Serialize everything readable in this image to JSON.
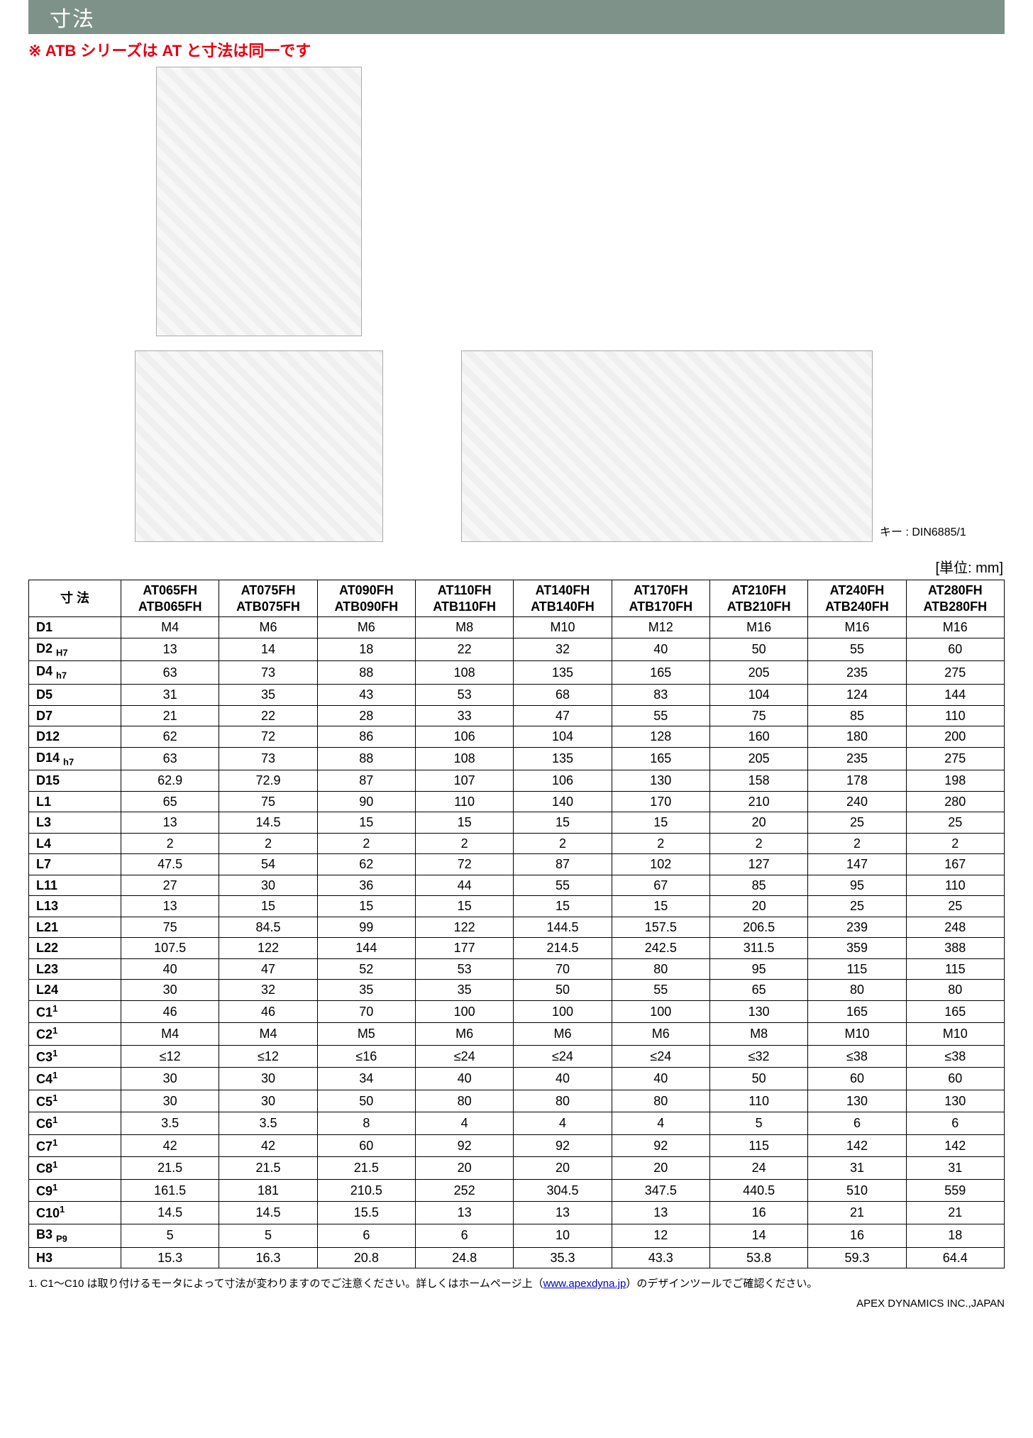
{
  "title": "寸法",
  "red_note": "※ ATB シリーズは AT と寸法は同一です",
  "unit_label": "[単位: mm]",
  "header_row_label": "寸 法",
  "key_label": "キー : DIN6885/1",
  "columns": [
    {
      "top": "AT065FH",
      "sub": "ATB065FH"
    },
    {
      "top": "AT075FH",
      "sub": "ATB075FH"
    },
    {
      "top": "AT090FH",
      "sub": "ATB090FH"
    },
    {
      "top": "AT110FH",
      "sub": "ATB110FH"
    },
    {
      "top": "AT140FH",
      "sub": "ATB140FH"
    },
    {
      "top": "AT170FH",
      "sub": "ATB170FH"
    },
    {
      "top": "AT210FH",
      "sub": "ATB210FH"
    },
    {
      "top": "AT240FH",
      "sub": "ATB240FH"
    },
    {
      "top": "AT280FH",
      "sub": "ATB280FH"
    }
  ],
  "rows": [
    {
      "label": "D1",
      "values": [
        "M4",
        "M6",
        "M6",
        "M8",
        "M10",
        "M12",
        "M16",
        "M16",
        "M16"
      ]
    },
    {
      "label": "D2",
      "label_sub": "H7",
      "values": [
        "13",
        "14",
        "18",
        "22",
        "32",
        "40",
        "50",
        "55",
        "60"
      ]
    },
    {
      "label": "D4",
      "label_sub": "h7",
      "values": [
        "63",
        "73",
        "88",
        "108",
        "135",
        "165",
        "205",
        "235",
        "275"
      ]
    },
    {
      "label": "D5",
      "values": [
        "31",
        "35",
        "43",
        "53",
        "68",
        "83",
        "104",
        "124",
        "144"
      ]
    },
    {
      "label": "D7",
      "values": [
        "21",
        "22",
        "28",
        "33",
        "47",
        "55",
        "75",
        "85",
        "110"
      ]
    },
    {
      "label": "D12",
      "values": [
        "62",
        "72",
        "86",
        "106",
        "104",
        "128",
        "160",
        "180",
        "200"
      ]
    },
    {
      "label": "D14",
      "label_sub": "h7",
      "values": [
        "63",
        "73",
        "88",
        "108",
        "135",
        "165",
        "205",
        "235",
        "275"
      ]
    },
    {
      "label": "D15",
      "values": [
        "62.9",
        "72.9",
        "87",
        "107",
        "106",
        "130",
        "158",
        "178",
        "198"
      ]
    },
    {
      "label": "L1",
      "values": [
        "65",
        "75",
        "90",
        "110",
        "140",
        "170",
        "210",
        "240",
        "280"
      ]
    },
    {
      "label": "L3",
      "values": [
        "13",
        "14.5",
        "15",
        "15",
        "15",
        "15",
        "20",
        "25",
        "25"
      ]
    },
    {
      "label": "L4",
      "values": [
        "2",
        "2",
        "2",
        "2",
        "2",
        "2",
        "2",
        "2",
        "2"
      ]
    },
    {
      "label": "L7",
      "values": [
        "47.5",
        "54",
        "62",
        "72",
        "87",
        "102",
        "127",
        "147",
        "167"
      ]
    },
    {
      "label": "L11",
      "values": [
        "27",
        "30",
        "36",
        "44",
        "55",
        "67",
        "85",
        "95",
        "110"
      ]
    },
    {
      "label": "L13",
      "values": [
        "13",
        "15",
        "15",
        "15",
        "15",
        "15",
        "20",
        "25",
        "25"
      ]
    },
    {
      "label": "L21",
      "values": [
        "75",
        "84.5",
        "99",
        "122",
        "144.5",
        "157.5",
        "206.5",
        "239",
        "248"
      ]
    },
    {
      "label": "L22",
      "values": [
        "107.5",
        "122",
        "144",
        "177",
        "214.5",
        "242.5",
        "311.5",
        "359",
        "388"
      ]
    },
    {
      "label": "L23",
      "values": [
        "40",
        "47",
        "52",
        "53",
        "70",
        "80",
        "95",
        "115",
        "115"
      ]
    },
    {
      "label": "L24",
      "values": [
        "30",
        "32",
        "35",
        "35",
        "50",
        "55",
        "65",
        "80",
        "80"
      ]
    },
    {
      "label": "C1",
      "label_sup": "1",
      "values": [
        "46",
        "46",
        "70",
        "100",
        "100",
        "100",
        "130",
        "165",
        "165"
      ]
    },
    {
      "label": "C2",
      "label_sup": "1",
      "values": [
        "M4",
        "M4",
        "M5",
        "M6",
        "M6",
        "M6",
        "M8",
        "M10",
        "M10"
      ]
    },
    {
      "label": "C3",
      "label_sup": "1",
      "values": [
        "≤12",
        "≤12",
        "≤16",
        "≤24",
        "≤24",
        "≤24",
        "≤32",
        "≤38",
        "≤38"
      ]
    },
    {
      "label": "C4",
      "label_sup": "1",
      "values": [
        "30",
        "30",
        "34",
        "40",
        "40",
        "40",
        "50",
        "60",
        "60"
      ]
    },
    {
      "label": "C5",
      "label_sup": "1",
      "values": [
        "30",
        "30",
        "50",
        "80",
        "80",
        "80",
        "110",
        "130",
        "130"
      ]
    },
    {
      "label": "C6",
      "label_sup": "1",
      "values": [
        "3.5",
        "3.5",
        "8",
        "4",
        "4",
        "4",
        "5",
        "6",
        "6"
      ]
    },
    {
      "label": "C7",
      "label_sup": "1",
      "values": [
        "42",
        "42",
        "60",
        "92",
        "92",
        "92",
        "115",
        "142",
        "142"
      ]
    },
    {
      "label": "C8",
      "label_sup": "1",
      "values": [
        "21.5",
        "21.5",
        "21.5",
        "20",
        "20",
        "20",
        "24",
        "31",
        "31"
      ]
    },
    {
      "label": "C9",
      "label_sup": "1",
      "values": [
        "161.5",
        "181",
        "210.5",
        "252",
        "304.5",
        "347.5",
        "440.5",
        "510",
        "559"
      ]
    },
    {
      "label": "C10",
      "label_sup": "1",
      "values": [
        "14.5",
        "14.5",
        "15.5",
        "13",
        "13",
        "13",
        "16",
        "21",
        "21"
      ]
    },
    {
      "label": "B3",
      "label_sub": "P9",
      "values": [
        "5",
        "5",
        "6",
        "6",
        "10",
        "12",
        "14",
        "16",
        "18"
      ]
    },
    {
      "label": "H3",
      "values": [
        "15.3",
        "16.3",
        "20.8",
        "24.8",
        "35.3",
        "43.3",
        "53.8",
        "59.3",
        "64.4"
      ]
    }
  ],
  "footnote_pre": "1. C1～C10 は取り付けるモータによって寸法が変わりますのでご注意ください。詳しくはホームページ上（",
  "footnote_link_text": "www.apexdyna.jp",
  "footnote_post": "）のデザインツールでご確認ください。",
  "footer_right": "APEX DYNAMICS INC.,JAPAN"
}
